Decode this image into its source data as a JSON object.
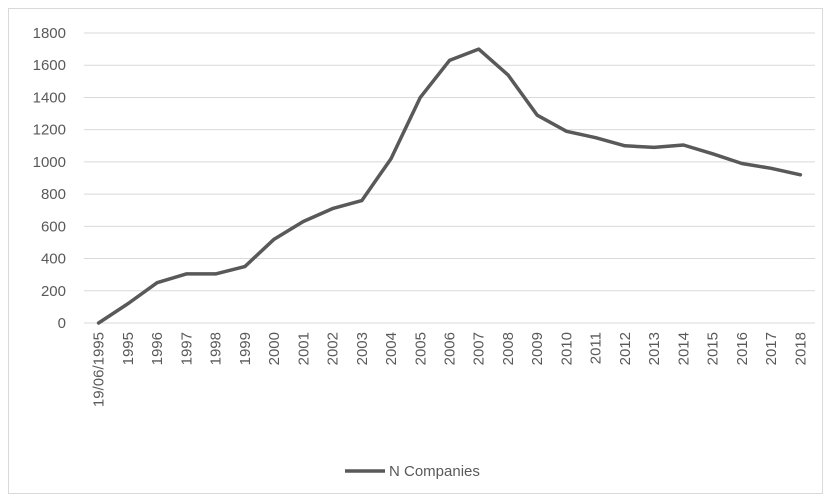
{
  "chart_data": {
    "type": "line",
    "categories": [
      "19/06/1995",
      "1995",
      "1996",
      "1997",
      "1998",
      "1999",
      "2000",
      "2001",
      "2002",
      "2003",
      "2004",
      "2005",
      "2006",
      "2007",
      "2008",
      "2009",
      "2010",
      "2011",
      "2012",
      "2013",
      "2014",
      "2015",
      "2016",
      "2017",
      "2018"
    ],
    "series": [
      {
        "name": "N Companies",
        "color": "#595959",
        "values": [
          0,
          120,
          250,
          305,
          305,
          350,
          520,
          630,
          710,
          760,
          1020,
          1400,
          1630,
          1700,
          1540,
          1290,
          1190,
          1150,
          1100,
          1090,
          1105,
          1050,
          990,
          960,
          920
        ]
      }
    ],
    "y_ticks": [
      "0",
      "200",
      "400",
      "600",
      "800",
      "1000",
      "1200",
      "1400",
      "1600",
      "1800"
    ],
    "ylim": [
      0,
      1800
    ],
    "grid": true,
    "legend_position": "bottom"
  }
}
